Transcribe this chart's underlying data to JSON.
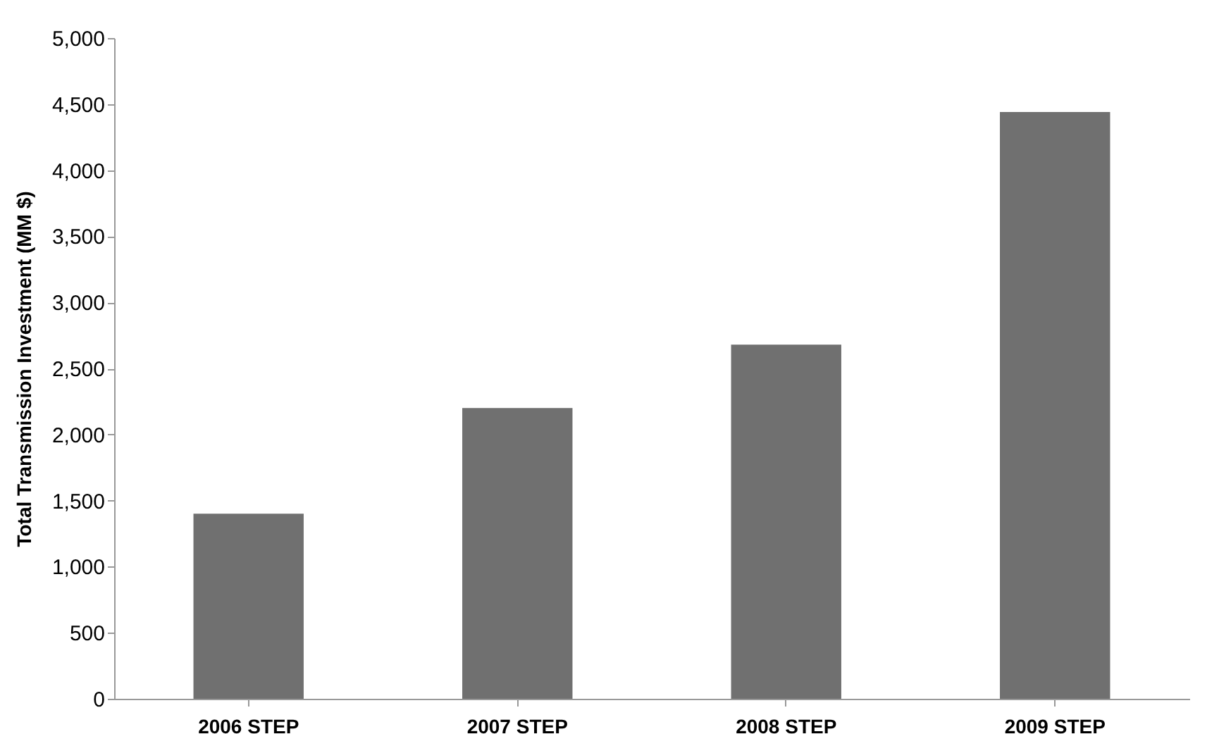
{
  "chart_data": {
    "type": "bar",
    "ylabel": "Total Transmission Investment (MM $)",
    "categories": [
      "2006 STEP",
      "2007 STEP",
      "2008 STEP",
      "2009 STEP"
    ],
    "values": [
      1400,
      2200,
      2680,
      4440
    ],
    "color": "#707070",
    "ylim": [
      0,
      5000
    ],
    "yticks": [
      0,
      500,
      {
        "value": 1000,
        "label": "1,000"
      },
      {
        "value": 1500,
        "label": "1,500"
      },
      {
        "value": 2000,
        "label": "2,000"
      },
      {
        "value": 2500,
        "label": "2,500"
      },
      {
        "value": 3000,
        "label": "3,000"
      },
      {
        "value": 3500,
        "label": "3,500"
      },
      {
        "value": 4000,
        "label": "4,000"
      },
      {
        "value": 4500,
        "label": "4,500"
      },
      {
        "value": 5000,
        "label": "5,000"
      }
    ],
    "grid": false
  }
}
